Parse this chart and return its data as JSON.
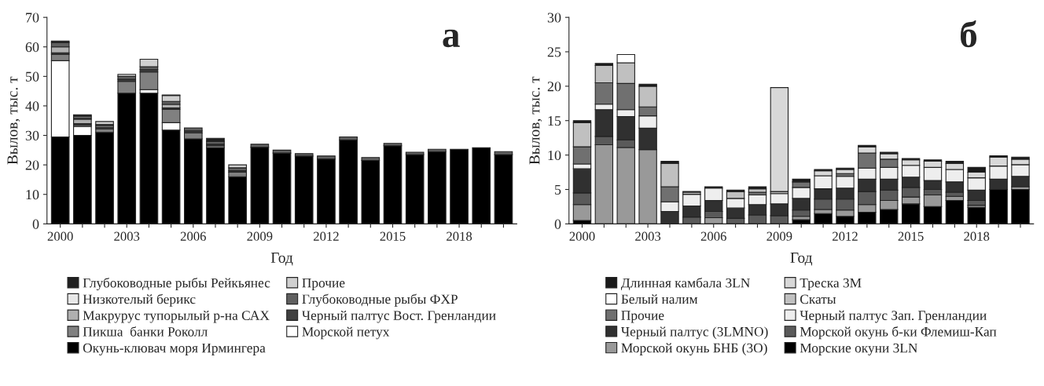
{
  "chart_data": [
    {
      "type": "bar",
      "stacked": true,
      "ylabel": "Вылов, тыс. т",
      "xlabel": "Год",
      "annotations": [
        "а"
      ],
      "legend": "bottom",
      "grid": false,
      "categories": [
        "2000",
        null,
        null,
        "2003",
        null,
        null,
        "2006",
        null,
        null,
        "2009",
        null,
        null,
        "2012",
        null,
        null,
        "2015",
        null,
        null,
        "2018",
        null,
        null
      ],
      "ylim": [
        0,
        70
      ],
      "yticks": [
        0,
        10,
        20,
        30,
        40,
        50,
        60,
        70
      ],
      "series": [
        {
          "name": "Окунь-клювач моря Ирмингера",
          "color": "#000000",
          "values": [
            29.5,
            30,
            31,
            44.3,
            44.3,
            31.8,
            28.8,
            25.8,
            16,
            26,
            24,
            23,
            22,
            28.5,
            21.5,
            26.5,
            23.5,
            24.5,
            25.3,
            25.8,
            23.5
          ]
        },
        {
          "name": "Морской петух",
          "color": "#ffffff",
          "values": [
            25.8,
            3,
            0,
            0,
            1.2,
            2.5,
            0,
            0,
            0,
            0,
            0,
            0,
            0,
            0,
            0,
            0,
            0,
            0,
            0,
            0,
            0
          ]
        },
        {
          "name": "Пикша  банки Роколл",
          "color": "#808080",
          "values": [
            2.2,
            0.5,
            1.2,
            4,
            6,
            4.5,
            2,
            0.7,
            1.5,
            0,
            0,
            0,
            0,
            0,
            0,
            0,
            0,
            0,
            0,
            0,
            0
          ]
        },
        {
          "name": "Черный палтус Вост. Гренландии",
          "color": "#404040",
          "values": [
            0.5,
            0.5,
            0.5,
            0.7,
            0.8,
            0.5,
            0.7,
            0.5,
            0.5,
            0,
            0,
            0,
            0,
            0,
            0,
            0,
            0,
            0,
            0,
            0,
            0
          ]
        },
        {
          "name": "Макрурус тупорылый р-на САХ",
          "color": "#b0b0b0",
          "values": [
            2,
            1.5,
            0.5,
            0,
            0,
            1.2,
            0,
            0,
            0,
            0,
            0,
            0,
            0,
            0,
            0,
            0,
            0,
            0,
            0,
            0,
            0
          ]
        },
        {
          "name": "Глубоководные рыбы ФХР",
          "color": "#606060",
          "values": [
            1.5,
            0.5,
            0.5,
            1,
            1,
            1,
            1,
            1,
            1,
            1,
            1,
            0.8,
            1,
            1,
            1,
            0.8,
            0.8,
            0.8,
            0,
            0,
            1
          ]
        },
        {
          "name": "Низкотелый берикс",
          "color": "#e8e8e8",
          "values": [
            0,
            0,
            0,
            0,
            0,
            0,
            0,
            0,
            0,
            0,
            0,
            0,
            0,
            0,
            0,
            0,
            0,
            0,
            0,
            0,
            0
          ]
        },
        {
          "name": "Прочие",
          "color": "#d0d0d0",
          "values": [
            0,
            0.5,
            1,
            0.7,
            2.5,
            2,
            0,
            0,
            1,
            0,
            0,
            0,
            0,
            0,
            0,
            0,
            0,
            0,
            0,
            0,
            0
          ]
        },
        {
          "name": "Глубоководные рыбы Рейкьянес",
          "color": "#202020",
          "values": [
            0.5,
            0.5,
            0,
            0,
            0,
            0.2,
            0,
            1,
            0,
            0,
            0,
            0,
            0,
            0,
            0,
            0,
            0,
            0,
            0,
            0,
            0
          ]
        }
      ]
    },
    {
      "type": "bar",
      "stacked": true,
      "ylabel": "Вылов, тыс. т",
      "xlabel": "Год",
      "annotations": [
        "б"
      ],
      "legend": "bottom",
      "grid": false,
      "categories": [
        "2000",
        null,
        null,
        "2003",
        null,
        null,
        "2006",
        null,
        null,
        "2009",
        null,
        null,
        "2012",
        null,
        null,
        "2015",
        null,
        null,
        "2018",
        null,
        null
      ],
      "ylim": [
        0,
        30
      ],
      "yticks": [
        0,
        5,
        10,
        15,
        20,
        25,
        30
      ],
      "series": [
        {
          "name": "Морские окуни 3LN",
          "color": "#000000",
          "values": [
            0.5,
            0,
            0,
            0,
            0,
            0,
            0,
            0,
            0,
            0,
            0.6,
            1.5,
            1.1,
            1.7,
            2.1,
            2.9,
            2.5,
            3.4,
            2.4,
            5.0,
            5.0
          ]
        },
        {
          "name": "Морской окунь БНБ (3О)",
          "color": "#999999",
          "values": [
            2.3,
            11.5,
            11.1,
            10.8,
            0,
            0,
            0.9,
            0,
            0,
            0,
            0.5,
            0.6,
            0.9,
            1.1,
            1.3,
            1.0,
            1.7,
            0.6,
            0.3,
            0,
            0.4
          ]
        },
        {
          "name": "Морской окунь б-ки Флемиш-Кап",
          "color": "#5a5a5a",
          "values": [
            1.7,
            1.2,
            1.1,
            0,
            0,
            1.0,
            0.9,
            0.8,
            1.3,
            1.2,
            0.9,
            1.5,
            1.6,
            1.9,
            1.5,
            1.4,
            0.8,
            0.6,
            0.7,
            0,
            0
          ]
        },
        {
          "name": "Черный палтус (3LMNO)",
          "color": "#303030",
          "values": [
            3.5,
            3.9,
            3.4,
            3.1,
            1.8,
            1.6,
            1.6,
            1.5,
            1.5,
            1.7,
            1.7,
            1.5,
            1.6,
            1.8,
            1.6,
            1.5,
            1.3,
            1.5,
            1.5,
            1.5,
            1.5
          ]
        },
        {
          "name": "Черный палтус Зап. Гренландии",
          "color": "#eeeeee",
          "values": [
            0.7,
            0.8,
            1.0,
            1.8,
            1.4,
            1.7,
            1.8,
            1.4,
            1.4,
            1.5,
            1.6,
            1.9,
            1.7,
            1.6,
            1.7,
            1.7,
            1.9,
            1.8,
            1.8,
            1.9,
            1.7
          ]
        },
        {
          "name": "Прочие",
          "color": "#707070",
          "values": [
            2.5,
            3.1,
            3.8,
            1.3,
            2.2,
            0,
            0,
            0,
            0.4,
            0,
            0.8,
            0,
            0.4,
            2.2,
            1.2,
            0,
            0,
            0,
            0,
            0,
            0
          ]
        },
        {
          "name": "Скаты",
          "color": "#c0c0c0",
          "values": [
            3.5,
            2.5,
            3.0,
            3.0,
            3.4,
            0.3,
            0,
            1.0,
            0.5,
            0.3,
            0,
            0,
            0,
            0,
            0,
            0,
            0,
            0,
            0,
            0,
            0
          ]
        },
        {
          "name": "Белый налим",
          "color": "#ffffff",
          "values": [
            0,
            0,
            1.2,
            0,
            0,
            0,
            0,
            0,
            0,
            0,
            0,
            0,
            0,
            0,
            0,
            0,
            0,
            0,
            0,
            0,
            0
          ]
        },
        {
          "name": "Треска 3М",
          "color": "#d8d8d8",
          "values": [
            0,
            0,
            0,
            0,
            0,
            0,
            0,
            0,
            0,
            15.1,
            0,
            0.7,
            0.6,
            0.9,
            0.8,
            0.8,
            0.9,
            0.9,
            0.8,
            1.3,
            0.8
          ]
        },
        {
          "name": "Длинная камбала 3LN",
          "color": "#1a1a1a",
          "values": [
            0.3,
            0.3,
            0,
            0.3,
            0.3,
            0.1,
            0.2,
            0.2,
            0.3,
            0,
            0.4,
            0.2,
            0.2,
            0.2,
            0.2,
            0.2,
            0.2,
            0.3,
            0.7,
            0.2,
            0.3
          ]
        }
      ]
    }
  ]
}
